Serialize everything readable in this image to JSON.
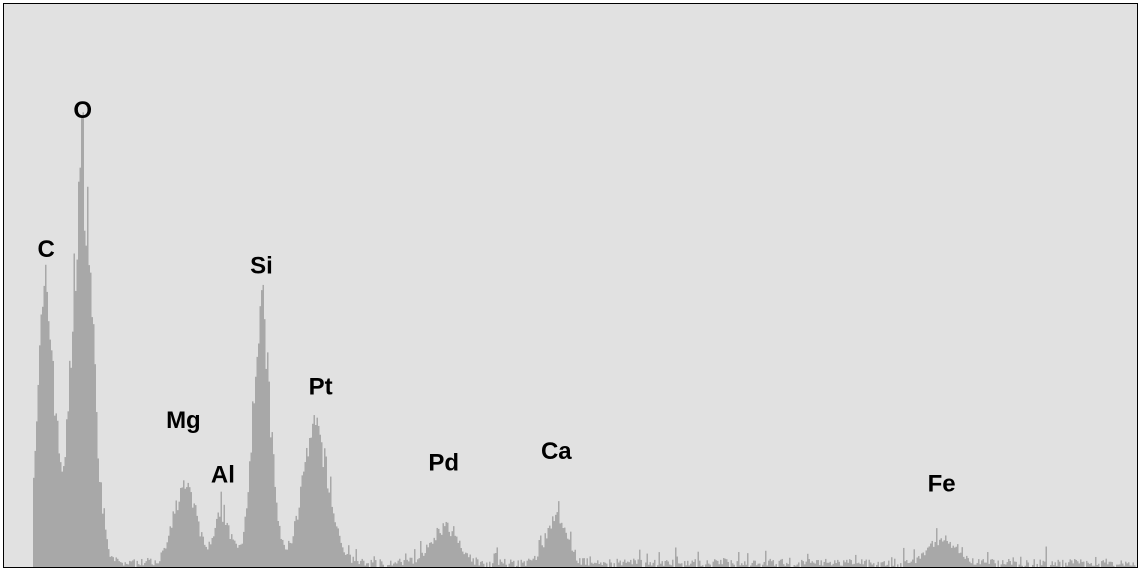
{
  "chart_data": {
    "type": "bar",
    "title": "",
    "xlabel": "",
    "ylabel": "",
    "grid": false,
    "legend": "none",
    "bar_color": "#a8a8a8",
    "background_color": "#e1e1e1",
    "x_range": [
      0,
      1
    ],
    "y_range": [
      0,
      1
    ],
    "peaks": [
      {
        "label": "C",
        "x": 0.012,
        "height": 0.48,
        "width": 0.008
      },
      {
        "label": "O",
        "x": 0.045,
        "height": 0.73,
        "width": 0.009
      },
      {
        "label": "Mg",
        "x": 0.138,
        "height": 0.14,
        "width": 0.01
      },
      {
        "label": "Al",
        "x": 0.172,
        "height": 0.09,
        "width": 0.007
      },
      {
        "label": "Si",
        "x": 0.207,
        "height": 0.45,
        "width": 0.008
      },
      {
        "label": "Pt",
        "x": 0.256,
        "height": 0.235,
        "width": 0.012
      },
      {
        "label": "Pd",
        "x": 0.372,
        "height": 0.065,
        "width": 0.012
      },
      {
        "label": "Ca",
        "x": 0.474,
        "height": 0.085,
        "width": 0.009
      },
      {
        "label": "Fe",
        "x": 0.823,
        "height": 0.045,
        "width": 0.011
      }
    ],
    "noise_level": 0.015
  }
}
